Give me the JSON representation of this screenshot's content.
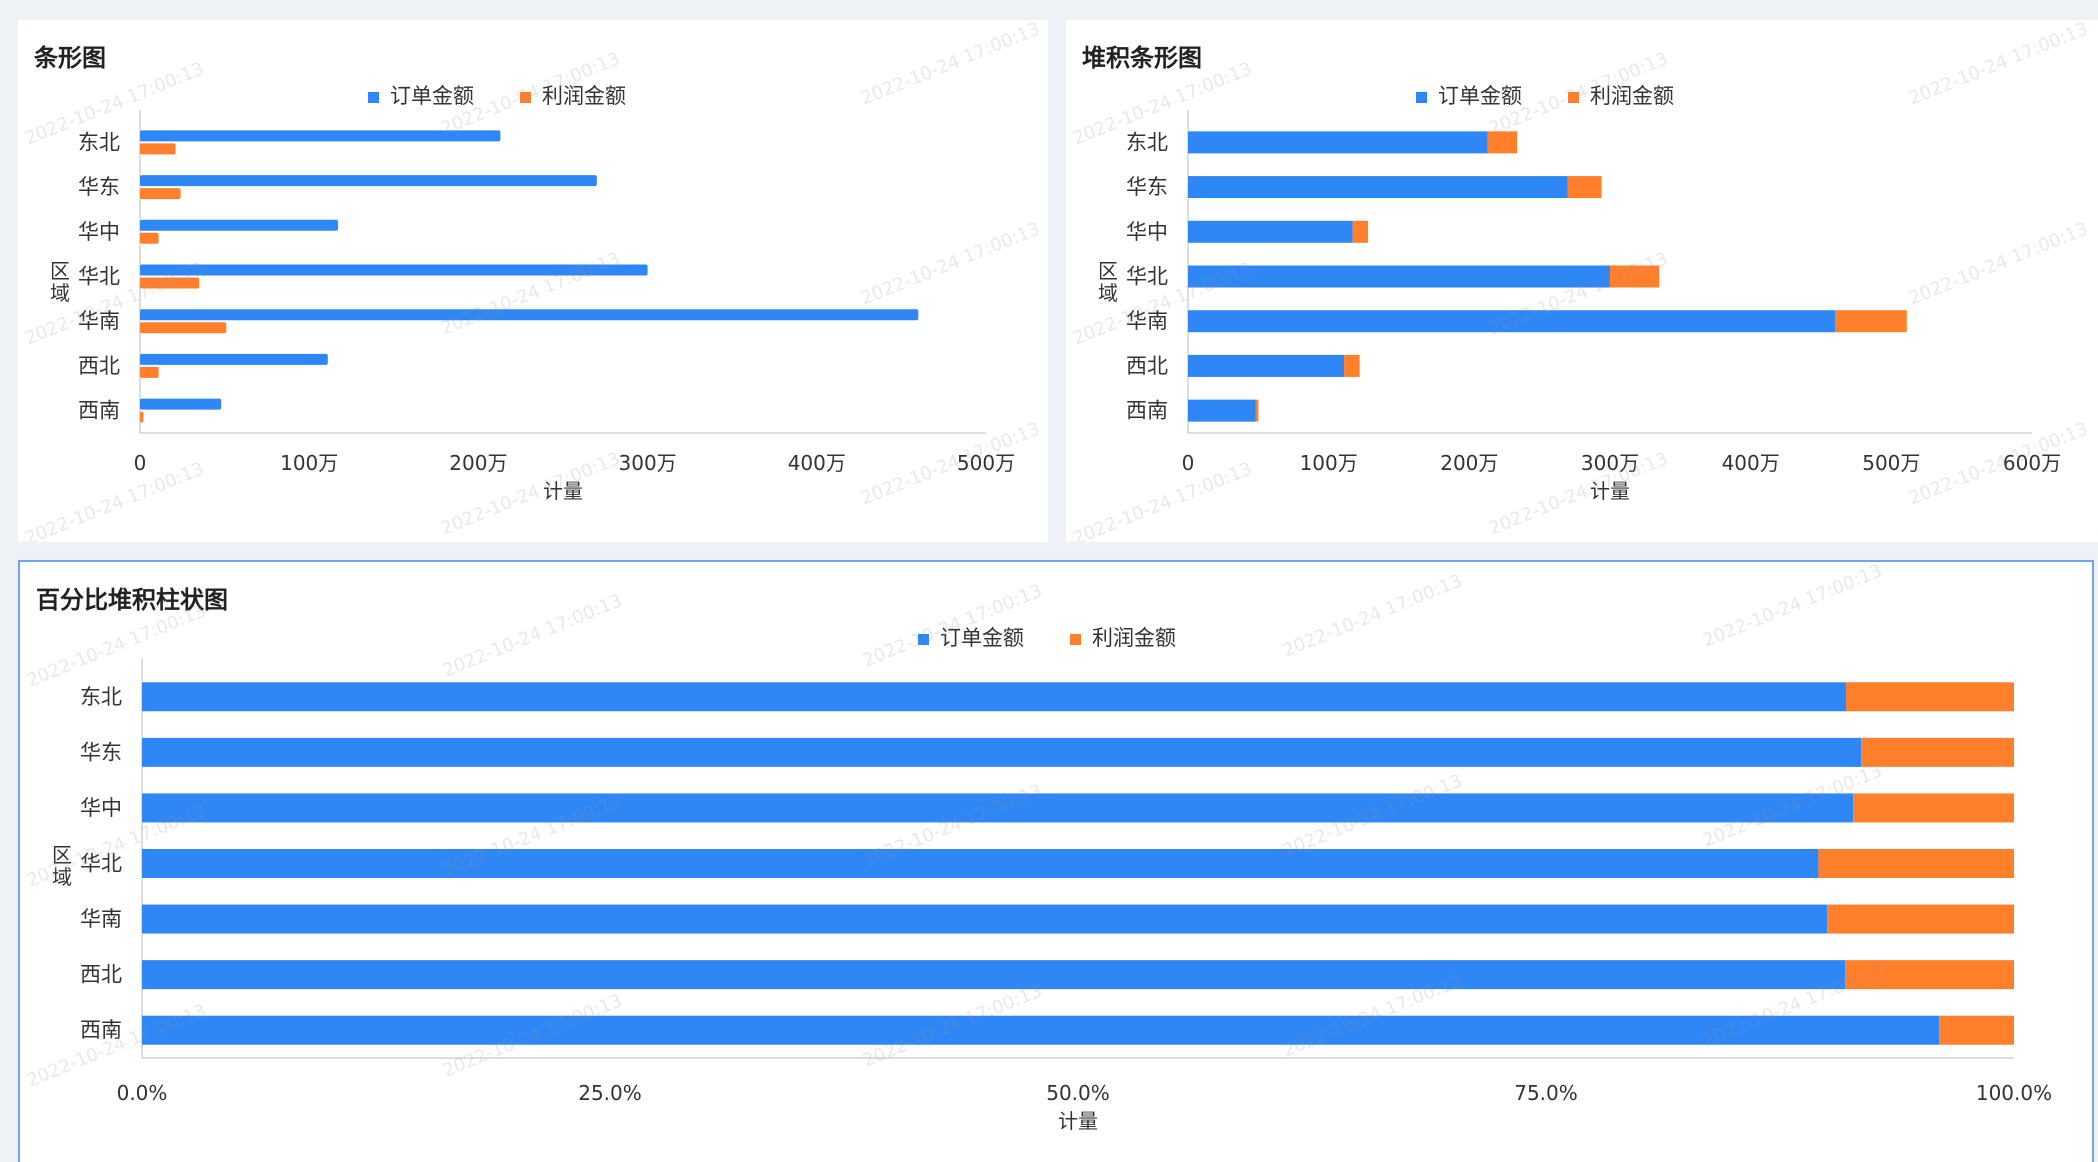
{
  "colors": {
    "order": "#2f87f6",
    "profit": "#ff7f2a"
  },
  "watermark": "2022-10-24 17:00:13",
  "chart_data": [
    {
      "type": "bar",
      "orientation": "horizontal",
      "mode": "grouped",
      "title": "条形图",
      "xlabel": "计量",
      "ylabel": "区域",
      "categories": [
        "东北",
        "华东",
        "华中",
        "华北",
        "华南",
        "西北",
        "西南"
      ],
      "series": [
        {
          "name": "订单金额",
          "values": [
            2130000,
            2700000,
            1170000,
            3000000,
            4600000,
            1110000,
            480000
          ]
        },
        {
          "name": "利润金额",
          "values": [
            210000,
            240000,
            110000,
            350000,
            510000,
            110000,
            20000
          ]
        }
      ],
      "xlim": [
        0,
        5000000
      ],
      "xticks": [
        0,
        1000000,
        2000000,
        3000000,
        4000000,
        5000000
      ],
      "xtick_labels": [
        "0",
        "100万",
        "200万",
        "300万",
        "400万",
        "500万"
      ],
      "legend": "top-center"
    },
    {
      "type": "bar",
      "orientation": "horizontal",
      "mode": "stacked",
      "title": "堆积条形图",
      "xlabel": "计量",
      "ylabel": "区域",
      "categories": [
        "东北",
        "华东",
        "华中",
        "华北",
        "华南",
        "西北",
        "西南"
      ],
      "series": [
        {
          "name": "订单金额",
          "values": [
            2130000,
            2700000,
            1170000,
            3000000,
            4600000,
            1110000,
            480000
          ]
        },
        {
          "name": "利润金额",
          "values": [
            210000,
            240000,
            110000,
            350000,
            510000,
            110000,
            20000
          ]
        }
      ],
      "xlim": [
        0,
        6000000
      ],
      "xticks": [
        0,
        1000000,
        2000000,
        3000000,
        4000000,
        5000000,
        6000000
      ],
      "xtick_labels": [
        "0",
        "100万",
        "200万",
        "300万",
        "400万",
        "500万",
        "600万"
      ],
      "legend": "top-center"
    },
    {
      "type": "bar",
      "orientation": "horizontal",
      "mode": "percent",
      "title": "百分比堆积柱状图",
      "xlabel": "计量",
      "ylabel": "区域",
      "categories": [
        "东北",
        "华东",
        "华中",
        "华北",
        "华南",
        "西北",
        "西南"
      ],
      "series": [
        {
          "name": "订单金额",
          "values": [
            2130000,
            2700000,
            1170000,
            3000000,
            4600000,
            1110000,
            480000
          ]
        },
        {
          "name": "利润金额",
          "values": [
            210000,
            240000,
            110000,
            350000,
            510000,
            110000,
            20000
          ]
        }
      ],
      "xlim": [
        0,
        1
      ],
      "xticks": [
        0,
        0.25,
        0.5,
        0.75,
        1
      ],
      "xtick_labels": [
        "0.0%",
        "25.0%",
        "50.0%",
        "75.0%",
        "100.0%"
      ],
      "legend": "top-center"
    }
  ]
}
